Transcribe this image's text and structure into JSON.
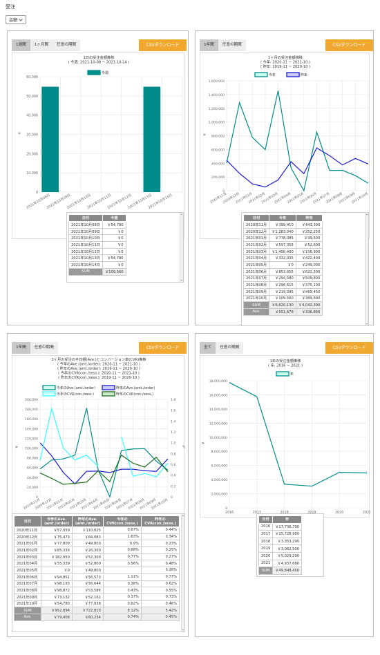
{
  "page": {
    "title": "受注",
    "metric_select": "金額",
    "metric_chevron": "chevron-down-icon"
  },
  "colors": {
    "teal": "#008b8b",
    "blue": "#1a1acd",
    "cyan": "#33ffff",
    "green": "#1a6b1a",
    "orange": "#f0a830"
  },
  "panel1": {
    "tabs": [
      "1週間",
      "1ヶ月間",
      "任意の期間"
    ],
    "csv_label": "CSVダウンロード",
    "table_headers": [
      "日付",
      "今週"
    ],
    "rows": [
      [
        "2021年10月08日",
        "￥54,780"
      ],
      [
        "2021年10月09日",
        "￥0"
      ],
      [
        "2021年10月10日",
        "￥0"
      ],
      [
        "2021年10月11日",
        "￥0"
      ],
      [
        "2021年10月12日",
        "￥0"
      ],
      [
        "2021年10月13日",
        "￥54,780"
      ],
      [
        "2021年10月14日",
        "￥0"
      ]
    ],
    "sum": [
      "SUM",
      "￥109,560"
    ]
  },
  "panel2": {
    "tabs": [
      "1年間",
      "任意の期間"
    ],
    "csv_label": "CSVダウンロード",
    "table_headers": [
      "日付",
      "今年",
      "昨年"
    ],
    "rows": [
      [
        "2020年11月",
        "￥399,410",
        "￥443,300"
      ],
      [
        "2020年12月",
        "￥1,283,040",
        "￥252,250"
      ],
      [
        "2021年01月",
        "￥778,085",
        "￥99,600"
      ],
      [
        "2021年02月",
        "￥597,355",
        "￥52,600"
      ],
      [
        "2021年03月",
        "￥1,456,400",
        "￥156,900"
      ],
      [
        "2021年04月",
        "￥332,035",
        "￥422,400"
      ],
      [
        "2021年05月",
        "￥0",
        "￥249,000"
      ],
      [
        "2021年06月",
        "￥853,655",
        "￥622,300"
      ],
      [
        "2021年07月",
        "￥294,580",
        "￥509,800"
      ],
      [
        "2021年08月",
        "￥296,615",
        "￥375,100"
      ],
      [
        "2021年09月",
        "￥219,395",
        "￥469,450"
      ],
      [
        "2021年10月",
        "￥109,560",
        "￥389,690"
      ]
    ],
    "sum": [
      "SUM",
      "￥6,620,130",
      "￥4,042,390"
    ],
    "ave": [
      "Ave.",
      "￥551,678",
      "￥336,866"
    ]
  },
  "panel3": {
    "tabs": [
      "1年間",
      "任意の期間"
    ],
    "csv_label": "CSVダウンロード",
    "table_headers": [
      "日付",
      "今年のAve.\n(amt./order)",
      "昨年のAve.\n(amt./order)",
      "今年の\nCVR(con./sess.)",
      "昨年の\nCVR(con./sess.)"
    ],
    "rows": [
      [
        "2020年11月",
        "￥57,059",
        "￥110,825",
        "0.67%",
        "0.44%"
      ],
      [
        "2020年12月",
        "￥75,473",
        "￥84,083",
        "1.63%",
        "0.34%"
      ],
      [
        "2021年01月",
        "￥77,809",
        "￥49,800",
        "0.9%",
        "0.23%"
      ],
      [
        "2021年02月",
        "￥85,336",
        "￥26,300",
        "0.68%",
        "0.25%"
      ],
      [
        "2021年03月",
        "￥182,050",
        "￥52,300",
        "0.77%",
        "0.27%"
      ],
      [
        "2021年04月",
        "￥55,339",
        "￥52,800",
        "0.56%",
        "0.48%"
      ],
      [
        "2021年05月",
        "￥0",
        "￥49,800",
        "",
        "0.28%"
      ],
      [
        "2021年06月",
        "￥94,851",
        "￥56,573",
        "1.11%",
        "0.77%"
      ],
      [
        "2021年07月",
        "￥98,193",
        "￥56,644",
        "0.38%",
        "0.62%"
      ],
      [
        "2021年08月",
        "￥98,872",
        "￥53,586",
        "0.43%",
        "0.55%"
      ],
      [
        "2021年09月",
        "￥73,132",
        "￥52,161",
        "0.37%",
        "0.73%"
      ],
      [
        "2021年10月",
        "￥54,780",
        "￥77,938",
        "0.62%",
        "0.46%"
      ]
    ],
    "sum": [
      "SUM",
      "￥952,894",
      "￥722,810",
      "8.12%",
      "5.42%"
    ],
    "ave": [
      "Ave.",
      "￥79,408",
      "￥60,234",
      "0.74%",
      "0.45%"
    ]
  },
  "panel4": {
    "tabs": [
      "全て",
      "任意の期間"
    ],
    "csv_label": "CSVダウンロード",
    "table_headers": [
      "日付",
      "年"
    ],
    "rows": [
      [
        "2016",
        "￥17,736,790"
      ],
      [
        "2017",
        "￥15,728,900"
      ],
      [
        "2018",
        "￥3,353,290"
      ],
      [
        "2019",
        "￥3,062,500"
      ],
      [
        "2020",
        "￥5,029,290"
      ],
      [
        "2021",
        "￥4,937,680"
      ]
    ],
    "sum": [
      "SUM",
      "￥49,848,450"
    ]
  },
  "chart_data": [
    {
      "type": "bar",
      "title": "1日の受注金額推移",
      "subtitle": "( 今週: 2021-10-08 ~ 2021-10-14 )",
      "categories": [
        "2021年10月08日",
        "2021年10月09日",
        "2021年10月10日",
        "2021年10月11日",
        "2021年10月12日",
        "2021年10月13日",
        "2021年10月14日"
      ],
      "series": [
        {
          "name": "今週",
          "values": [
            54780,
            0,
            0,
            0,
            0,
            54780,
            0
          ]
        }
      ],
      "ylabel": "¥",
      "ylim": [
        0,
        60000
      ],
      "yticks": [
        0,
        10000,
        20000,
        30000,
        40000,
        50000,
        60000
      ],
      "ytick_labels": [
        "0",
        "10,000",
        "20,000",
        "30,000",
        "40,000",
        "50,000",
        "60,000"
      ],
      "grid": true,
      "legend": "top"
    },
    {
      "type": "line",
      "title": "1ヶ月の受注金額推移",
      "subtitle": [
        "( 今年: 2020-11 ~ 2021-10 )",
        "( 昨年: 2019-11 ~ 2020-10 )"
      ],
      "categories": [
        "2020年11月",
        "2020年12月",
        "2021年01月",
        "2021年02月",
        "2021年03月",
        "2021年04月",
        "2021年05月",
        "2021年06月",
        "2021年07月",
        "2021年08月",
        "2021年09月",
        "2021年10月"
      ],
      "series": [
        {
          "name": "今年",
          "values": [
            399410,
            1283040,
            778085,
            597355,
            1456400,
            332035,
            0,
            853655,
            294580,
            296615,
            219395,
            109560
          ]
        },
        {
          "name": "昨年",
          "values": [
            443300,
            252250,
            99600,
            52600,
            156900,
            422400,
            249000,
            622300,
            509800,
            375100,
            469450,
            389690
          ]
        }
      ],
      "ylabel": "¥",
      "ylim": [
        0,
        1600000
      ],
      "yticks": [
        0,
        200000,
        400000,
        600000,
        800000,
        1000000,
        1200000,
        1400000,
        1600000
      ],
      "ytick_labels": [
        "0",
        "200,000",
        "400,000",
        "600,000",
        "800,000",
        "1,000,000",
        "1,200,000",
        "1,400,000",
        "1,600,000"
      ],
      "grid": true,
      "legend": "top"
    },
    {
      "type": "line",
      "title": "1ヶ月の受注の平均額(Ave.)とコンバージョン率(CVR)推移",
      "subtitle": [
        "( 今年のAve.(amt./order): 2020-11 ~ 2021-10 )",
        "( 昨年のAve.(amt./order): 2019-11 ~ 2020-10 )",
        "( 今年のCVR(con./sess.): 2020-11 ~ 2021-10 )",
        "( 昨年のCVR(con./sess.): 2019-11 ~ 2020-10 )"
      ],
      "categories": [
        "2020年11月",
        "2020年12月",
        "2021年01月",
        "2021年02月",
        "2021年03月",
        "2021年04月",
        "2021年05月",
        "2021年06月",
        "2021年07月",
        "2021年08月",
        "2021年09月",
        "2021年10月"
      ],
      "series": [
        {
          "name": "今年のAve.(amt./order)",
          "axis": "left",
          "values": [
            57059,
            75473,
            77809,
            85336,
            182050,
            55339,
            0,
            94851,
            98193,
            98872,
            73132,
            54780
          ]
        },
        {
          "name": "昨年のAve.(amt./order)",
          "axis": "left",
          "values": [
            110825,
            84083,
            49800,
            26300,
            52300,
            52800,
            49800,
            56573,
            56644,
            53586,
            52161,
            77938
          ]
        },
        {
          "name": "今年のCVR(con./sess.)",
          "axis": "right",
          "values": [
            0.67,
            1.63,
            0.9,
            0.68,
            0.77,
            0.56,
            null,
            1.11,
            0.38,
            0.43,
            0.37,
            0.62
          ]
        },
        {
          "name": "昨年のCVR(con./sess.)",
          "axis": "right",
          "values": [
            0.44,
            0.34,
            0.23,
            0.25,
            0.27,
            0.48,
            0.28,
            0.77,
            0.62,
            0.55,
            0.73,
            0.46
          ]
        }
      ],
      "ylabel": "¥",
      "y2label": "%",
      "ylim": [
        0,
        200000
      ],
      "y2lim": [
        0,
        1.8
      ],
      "yticks": [
        0,
        20000,
        40000,
        60000,
        80000,
        100000,
        120000,
        140000,
        160000,
        180000,
        200000
      ],
      "ytick_labels": [
        "0",
        "20,000",
        "40,000",
        "60,000",
        "80,000",
        "100,000",
        "120,000",
        "140,000",
        "160,000",
        "180,000",
        "200,000"
      ],
      "y2ticks": [
        0,
        0.2,
        0.4,
        0.6,
        0.8,
        1.0,
        1.2,
        1.4,
        1.6,
        1.8
      ],
      "y2tick_labels": [
        "0",
        "0.2",
        "0.4",
        "0.6",
        "0.8",
        "1.0",
        "1.2",
        "1.4",
        "1.6",
        "1.8"
      ],
      "grid": true,
      "legend": "top"
    },
    {
      "type": "line",
      "title": "1年の受注金額推移",
      "subtitle": "( 年: 2016 ~ 2021 )",
      "categories": [
        "2016",
        "2017",
        "2018",
        "2019",
        "2020",
        "2021"
      ],
      "series": [
        {
          "name": "年",
          "values": [
            17736790,
            15728900,
            3353290,
            3062500,
            5029290,
            4937680
          ]
        }
      ],
      "ylabel": "¥",
      "ylim": [
        0,
        18000000
      ],
      "yticks": [
        0,
        2000000,
        4000000,
        6000000,
        8000000,
        10000000,
        12000000,
        14000000,
        16000000,
        18000000
      ],
      "ytick_labels": [
        "0",
        "2,000,000",
        "4,000,000",
        "6,000,000",
        "8,000,000",
        "10,000,000",
        "12,000,000",
        "14,000,000",
        "16,000,000",
        "18,000,000"
      ],
      "grid": true,
      "legend": "top"
    }
  ]
}
